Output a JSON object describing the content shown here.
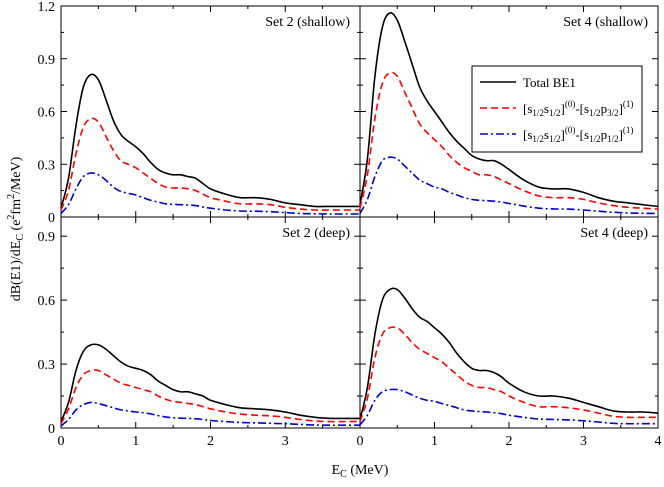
{
  "ylabel": "dB(E1)/dE_C (e^2fm^2/MeV)",
  "xlabel": "E_C (MeV)",
  "legend": {
    "total": "Total BE1",
    "p32": "[s1/2s1/2](0)-[s1/2p3/2](1)",
    "p12": "[s1/2s1/2](0)-[s1/2p1/2](1)"
  },
  "colors": {
    "total": "#000000",
    "p32": "#ff0000",
    "p12": "#0000cc"
  },
  "chart_data": [
    {
      "type": "line",
      "title": "Set 2 (shallow)",
      "x": [
        0,
        0.1,
        0.2,
        0.3,
        0.4,
        0.5,
        0.6,
        0.7,
        0.8,
        0.9,
        1.0,
        1.1,
        1.2,
        1.3,
        1.4,
        1.5,
        1.6,
        1.7,
        1.8,
        1.9,
        2.0,
        2.2,
        2.4,
        2.6,
        2.8,
        3.0,
        3.2,
        3.4,
        3.6,
        3.8,
        4.0
      ],
      "series": [
        {
          "name": "Total BE1",
          "values": [
            0.05,
            0.22,
            0.52,
            0.74,
            0.81,
            0.78,
            0.67,
            0.55,
            0.47,
            0.43,
            0.4,
            0.36,
            0.31,
            0.27,
            0.25,
            0.24,
            0.24,
            0.23,
            0.22,
            0.19,
            0.16,
            0.13,
            0.11,
            0.11,
            0.1,
            0.08,
            0.07,
            0.06,
            0.06,
            0.06,
            0.06
          ]
        },
        {
          "name": "p3/2",
          "values": [
            0.04,
            0.15,
            0.36,
            0.51,
            0.56,
            0.54,
            0.46,
            0.38,
            0.32,
            0.3,
            0.28,
            0.25,
            0.22,
            0.19,
            0.17,
            0.165,
            0.165,
            0.16,
            0.15,
            0.13,
            0.11,
            0.09,
            0.075,
            0.075,
            0.07,
            0.055,
            0.045,
            0.04,
            0.04,
            0.04,
            0.04
          ]
        },
        {
          "name": "p1/2",
          "values": [
            0.02,
            0.07,
            0.16,
            0.23,
            0.25,
            0.24,
            0.21,
            0.17,
            0.145,
            0.135,
            0.125,
            0.11,
            0.095,
            0.085,
            0.075,
            0.072,
            0.07,
            0.068,
            0.065,
            0.057,
            0.05,
            0.04,
            0.034,
            0.033,
            0.03,
            0.025,
            0.02,
            0.018,
            0.017,
            0.017,
            0.017
          ]
        }
      ],
      "xlim": [
        0,
        4
      ],
      "ylim": [
        0,
        1.2
      ]
    },
    {
      "type": "line",
      "title": "Set 4 (shallow)",
      "x": [
        0,
        0.1,
        0.2,
        0.3,
        0.4,
        0.5,
        0.6,
        0.7,
        0.8,
        0.9,
        1.0,
        1.1,
        1.2,
        1.3,
        1.4,
        1.5,
        1.6,
        1.7,
        1.8,
        1.9,
        2.0,
        2.2,
        2.4,
        2.6,
        2.8,
        3.0,
        3.2,
        3.4,
        3.6,
        3.8,
        4.0
      ],
      "series": [
        {
          "name": "Total BE1",
          "values": [
            0.07,
            0.33,
            0.8,
            1.08,
            1.16,
            1.12,
            1.0,
            0.87,
            0.74,
            0.66,
            0.6,
            0.54,
            0.48,
            0.43,
            0.39,
            0.35,
            0.33,
            0.32,
            0.32,
            0.3,
            0.27,
            0.21,
            0.17,
            0.16,
            0.16,
            0.14,
            0.11,
            0.09,
            0.08,
            0.07,
            0.06
          ]
        },
        {
          "name": "p3/2",
          "values": [
            0.05,
            0.24,
            0.56,
            0.76,
            0.82,
            0.8,
            0.71,
            0.62,
            0.53,
            0.48,
            0.44,
            0.4,
            0.35,
            0.31,
            0.28,
            0.26,
            0.24,
            0.24,
            0.23,
            0.21,
            0.19,
            0.15,
            0.12,
            0.11,
            0.11,
            0.1,
            0.08,
            0.065,
            0.055,
            0.05,
            0.045
          ]
        },
        {
          "name": "p1/2",
          "values": [
            0.02,
            0.1,
            0.23,
            0.32,
            0.34,
            0.33,
            0.29,
            0.25,
            0.21,
            0.19,
            0.17,
            0.16,
            0.14,
            0.125,
            0.11,
            0.1,
            0.095,
            0.093,
            0.09,
            0.085,
            0.077,
            0.062,
            0.05,
            0.046,
            0.045,
            0.04,
            0.033,
            0.027,
            0.023,
            0.021,
            0.02
          ]
        }
      ],
      "xlim": [
        0,
        4
      ],
      "ylim": [
        0,
        1.2
      ]
    },
    {
      "type": "line",
      "title": "Set 2 (deep)",
      "x": [
        0,
        0.1,
        0.2,
        0.3,
        0.4,
        0.5,
        0.6,
        0.7,
        0.8,
        0.9,
        1.0,
        1.1,
        1.2,
        1.3,
        1.4,
        1.5,
        1.6,
        1.7,
        1.8,
        1.9,
        2.0,
        2.2,
        2.4,
        2.6,
        2.8,
        3.0,
        3.2,
        3.4,
        3.6,
        3.8,
        4.0
      ],
      "series": [
        {
          "name": "Total BE1",
          "values": [
            0.03,
            0.12,
            0.27,
            0.36,
            0.39,
            0.39,
            0.37,
            0.34,
            0.31,
            0.29,
            0.28,
            0.27,
            0.25,
            0.22,
            0.2,
            0.18,
            0.17,
            0.17,
            0.16,
            0.15,
            0.13,
            0.11,
            0.095,
            0.09,
            0.085,
            0.075,
            0.06,
            0.05,
            0.045,
            0.045,
            0.045
          ]
        },
        {
          "name": "p3/2",
          "values": [
            0.02,
            0.09,
            0.19,
            0.25,
            0.27,
            0.27,
            0.25,
            0.23,
            0.21,
            0.2,
            0.19,
            0.18,
            0.17,
            0.15,
            0.135,
            0.125,
            0.12,
            0.115,
            0.11,
            0.1,
            0.09,
            0.075,
            0.065,
            0.06,
            0.057,
            0.05,
            0.04,
            0.033,
            0.03,
            0.03,
            0.03
          ]
        },
        {
          "name": "p1/2",
          "values": [
            0.01,
            0.04,
            0.085,
            0.11,
            0.12,
            0.115,
            0.105,
            0.095,
            0.085,
            0.08,
            0.075,
            0.072,
            0.066,
            0.058,
            0.052,
            0.048,
            0.046,
            0.045,
            0.043,
            0.04,
            0.035,
            0.03,
            0.026,
            0.024,
            0.022,
            0.02,
            0.017,
            0.014,
            0.013,
            0.013,
            0.013
          ]
        }
      ],
      "xlim": [
        0,
        4
      ],
      "ylim": [
        0,
        0.99
      ]
    },
    {
      "type": "line",
      "title": "Set 4 (deep)",
      "x": [
        0,
        0.1,
        0.2,
        0.3,
        0.4,
        0.5,
        0.6,
        0.7,
        0.8,
        0.9,
        1.0,
        1.1,
        1.2,
        1.3,
        1.4,
        1.5,
        1.6,
        1.7,
        1.8,
        1.9,
        2.0,
        2.2,
        2.4,
        2.6,
        2.8,
        3.0,
        3.2,
        3.4,
        3.6,
        3.8,
        4.0
      ],
      "series": [
        {
          "name": "Total BE1",
          "values": [
            0.04,
            0.19,
            0.44,
            0.6,
            0.65,
            0.65,
            0.61,
            0.56,
            0.52,
            0.5,
            0.47,
            0.44,
            0.4,
            0.35,
            0.31,
            0.28,
            0.27,
            0.27,
            0.26,
            0.24,
            0.21,
            0.17,
            0.15,
            0.15,
            0.14,
            0.12,
            0.1,
            0.08,
            0.075,
            0.075,
            0.07
          ]
        },
        {
          "name": "p3/2",
          "values": [
            0.03,
            0.14,
            0.33,
            0.44,
            0.47,
            0.47,
            0.44,
            0.4,
            0.37,
            0.35,
            0.33,
            0.31,
            0.28,
            0.25,
            0.22,
            0.2,
            0.19,
            0.19,
            0.18,
            0.17,
            0.15,
            0.12,
            0.1,
            0.1,
            0.095,
            0.085,
            0.07,
            0.055,
            0.05,
            0.05,
            0.05
          ]
        },
        {
          "name": "p1/2",
          "values": [
            0.015,
            0.06,
            0.13,
            0.17,
            0.18,
            0.18,
            0.17,
            0.155,
            0.14,
            0.13,
            0.125,
            0.115,
            0.105,
            0.095,
            0.085,
            0.08,
            0.077,
            0.075,
            0.072,
            0.067,
            0.06,
            0.05,
            0.042,
            0.04,
            0.038,
            0.034,
            0.028,
            0.022,
            0.02,
            0.02,
            0.02
          ]
        }
      ],
      "xlim": [
        0,
        4
      ],
      "ylim": [
        0,
        0.99
      ]
    }
  ],
  "axes": {
    "yticks_top": [
      "0",
      "0.3",
      "0.6",
      "0.9",
      "1.2"
    ],
    "yticks_bottom": [
      "0",
      "0.3",
      "0.6",
      "0.9"
    ],
    "xticks_left": [
      "0",
      "1",
      "2",
      "3"
    ],
    "xticks_right": [
      "0",
      "1",
      "2",
      "3",
      "4"
    ]
  }
}
